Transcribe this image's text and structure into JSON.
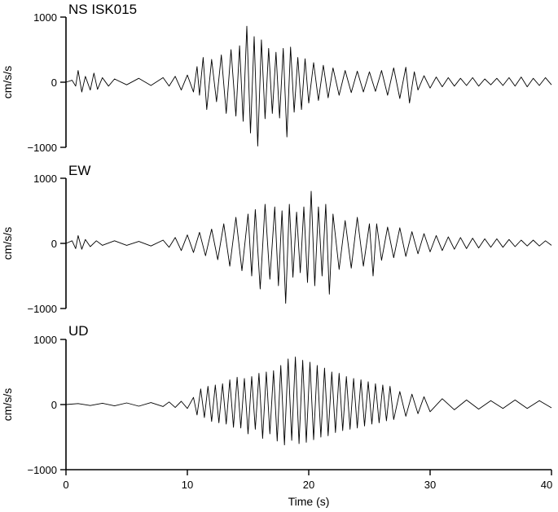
{
  "chart_data": [
    {
      "type": "line",
      "title": "NS ISK015",
      "ylabel": "cm/s/s",
      "xlabel": "",
      "xlim": [
        0,
        40
      ],
      "ylim": [
        -1000,
        1000
      ],
      "yticks": [
        1000,
        0,
        -1000
      ],
      "ytick_labels": [
        "1000",
        "0",
        "−1000"
      ],
      "series": [
        {
          "x": [
            0,
            0.5,
            0.8,
            1.0,
            1.3,
            1.6,
            2.0,
            2.3,
            2.6,
            3.0,
            3.5,
            4.0,
            5.0,
            6.0,
            7.0,
            8.0,
            8.5,
            9.0,
            9.5,
            10.0,
            10.5,
            10.8,
            11.0,
            11.3,
            11.6,
            12.0,
            12.4,
            12.8,
            13.2,
            13.6,
            14.0,
            14.3,
            14.6,
            14.9,
            15.2,
            15.5,
            15.8,
            16.1,
            16.4,
            16.7,
            17.0,
            17.3,
            17.6,
            17.9,
            18.2,
            18.5,
            18.8,
            19.1,
            19.4,
            19.7,
            20.0,
            20.4,
            20.8,
            21.2,
            21.6,
            22.0,
            22.5,
            23.0,
            23.5,
            24.0,
            24.5,
            25.0,
            25.5,
            26.0,
            26.5,
            27.0,
            27.5,
            28.0,
            28.3,
            28.7,
            29.0,
            29.5,
            30.0,
            30.5,
            31.0,
            31.5,
            32.0,
            32.5,
            33.0,
            33.5,
            34.0,
            34.5,
            35.0,
            35.5,
            36.0,
            36.5,
            37.0,
            37.5,
            38.0,
            38.5,
            39.0,
            39.5,
            40.0
          ],
          "y": [
            0,
            30,
            -60,
            180,
            -150,
            90,
            -120,
            140,
            -110,
            70,
            -60,
            50,
            -40,
            60,
            -50,
            70,
            -60,
            90,
            -120,
            110,
            -150,
            240,
            -200,
            380,
            -420,
            350,
            -300,
            420,
            -480,
            500,
            -520,
            560,
            -600,
            860,
            -780,
            700,
            -980,
            650,
            -560,
            520,
            -480,
            460,
            -550,
            520,
            -840,
            540,
            -460,
            380,
            -420,
            360,
            -320,
            300,
            -280,
            260,
            -240,
            220,
            -200,
            180,
            -160,
            170,
            -150,
            160,
            -140,
            180,
            -200,
            220,
            -250,
            230,
            -320,
            160,
            -120,
            100,
            -90,
            80,
            -70,
            70,
            -60,
            60,
            -50,
            70,
            -60,
            50,
            -40,
            60,
            -50,
            70,
            -60,
            80,
            -70,
            60,
            -50,
            70,
            -40
          ]
        }
      ]
    },
    {
      "type": "line",
      "title": "EW",
      "ylabel": "cm/s/s",
      "xlabel": "",
      "xlim": [
        0,
        40
      ],
      "ylim": [
        -1000,
        1000
      ],
      "yticks": [
        1000,
        0,
        -1000
      ],
      "ytick_labels": [
        "1000",
        "0",
        "−1000"
      ],
      "series": [
        {
          "x": [
            0,
            0.5,
            0.8,
            1.0,
            1.3,
            1.6,
            2.0,
            2.5,
            3.0,
            4.0,
            5.0,
            6.0,
            7.0,
            8.0,
            8.5,
            9.0,
            9.5,
            10.0,
            10.5,
            11.0,
            11.5,
            12.0,
            12.5,
            13.0,
            13.5,
            14.0,
            14.5,
            15.0,
            15.3,
            15.6,
            16.0,
            16.4,
            16.8,
            17.2,
            17.5,
            17.8,
            18.1,
            18.4,
            18.7,
            19.0,
            19.3,
            19.6,
            19.9,
            20.2,
            20.5,
            20.8,
            21.1,
            21.4,
            21.7,
            22.0,
            22.5,
            23.0,
            23.5,
            24.0,
            24.5,
            25.0,
            25.3,
            25.6,
            26.0,
            26.5,
            27.0,
            27.5,
            28.0,
            28.5,
            29.0,
            29.5,
            30.0,
            30.5,
            31.0,
            31.5,
            32.0,
            32.5,
            33.0,
            33.5,
            34.0,
            34.5,
            35.0,
            35.5,
            36.0,
            36.5,
            37.0,
            37.5,
            38.0,
            38.5,
            39.0,
            39.5,
            40.0
          ],
          "y": [
            0,
            40,
            -80,
            120,
            -90,
            60,
            -50,
            40,
            -30,
            40,
            -30,
            30,
            -40,
            50,
            -60,
            90,
            -110,
            130,
            -140,
            170,
            -190,
            220,
            -250,
            300,
            -350,
            400,
            -420,
            450,
            -500,
            520,
            -700,
            600,
            -550,
            560,
            -650,
            500,
            -920,
            600,
            -520,
            480,
            -450,
            560,
            -600,
            800,
            -650,
            560,
            -500,
            600,
            -780,
            450,
            -400,
            350,
            -380,
            400,
            -350,
            300,
            -500,
            300,
            -260,
            250,
            -220,
            240,
            -200,
            180,
            -160,
            150,
            -130,
            120,
            -110,
            100,
            -90,
            90,
            -80,
            80,
            -70,
            70,
            -60,
            70,
            -60,
            60,
            -50,
            50,
            -40,
            50,
            -40,
            40,
            -30
          ]
        }
      ]
    },
    {
      "type": "line",
      "title": "UD",
      "ylabel": "cm/s/s",
      "xlabel": "Time (s)",
      "xlim": [
        0,
        40
      ],
      "ylim": [
        -1000,
        1000
      ],
      "yticks": [
        1000,
        0,
        -1000
      ],
      "ytick_labels": [
        "1000",
        "0",
        "−1000"
      ],
      "xticks": [
        0,
        10,
        20,
        30,
        40
      ],
      "xtick_labels": [
        "0",
        "10",
        "20",
        "30",
        "40"
      ],
      "series": [
        {
          "x": [
            0,
            1,
            2,
            3,
            4,
            5,
            6,
            7,
            8,
            8.5,
            9,
            9.5,
            10,
            10.5,
            10.8,
            11.1,
            11.4,
            11.7,
            12.0,
            12.3,
            12.6,
            12.9,
            13.2,
            13.5,
            13.8,
            14.1,
            14.4,
            14.7,
            15.0,
            15.3,
            15.6,
            15.9,
            16.2,
            16.5,
            16.8,
            17.1,
            17.4,
            17.7,
            18.0,
            18.3,
            18.6,
            18.9,
            19.2,
            19.5,
            19.8,
            20.1,
            20.4,
            20.7,
            21.0,
            21.3,
            21.6,
            21.9,
            22.2,
            22.5,
            22.8,
            23.1,
            23.4,
            23.7,
            24.0,
            24.3,
            24.6,
            24.9,
            25.2,
            25.5,
            25.8,
            26.1,
            26.4,
            26.7,
            27.0,
            27.5,
            28.0,
            28.5,
            29.0,
            29.5,
            30.0,
            31.0,
            32.0,
            33.0,
            34.0,
            35.0,
            36.0,
            37.0,
            38.0,
            39.0,
            40.0
          ],
          "y": [
            0,
            15,
            -15,
            20,
            -20,
            25,
            -25,
            30,
            -30,
            40,
            -45,
            50,
            -60,
            110,
            -160,
            240,
            -200,
            280,
            -260,
            300,
            -280,
            320,
            -300,
            380,
            -350,
            420,
            -360,
            400,
            -450,
            430,
            -380,
            480,
            -520,
            500,
            -450,
            520,
            -560,
            600,
            -620,
            700,
            -550,
            730,
            -600,
            680,
            -580,
            650,
            -540,
            600,
            -500,
            560,
            -480,
            500,
            -430,
            480,
            -400,
            430,
            -380,
            400,
            -360,
            380,
            -330,
            350,
            -300,
            320,
            -280,
            300,
            -250,
            280,
            -230,
            200,
            -180,
            160,
            -140,
            120,
            -110,
            90,
            -80,
            70,
            -70,
            60,
            -60,
            70,
            -60,
            60,
            -50
          ]
        }
      ]
    }
  ]
}
